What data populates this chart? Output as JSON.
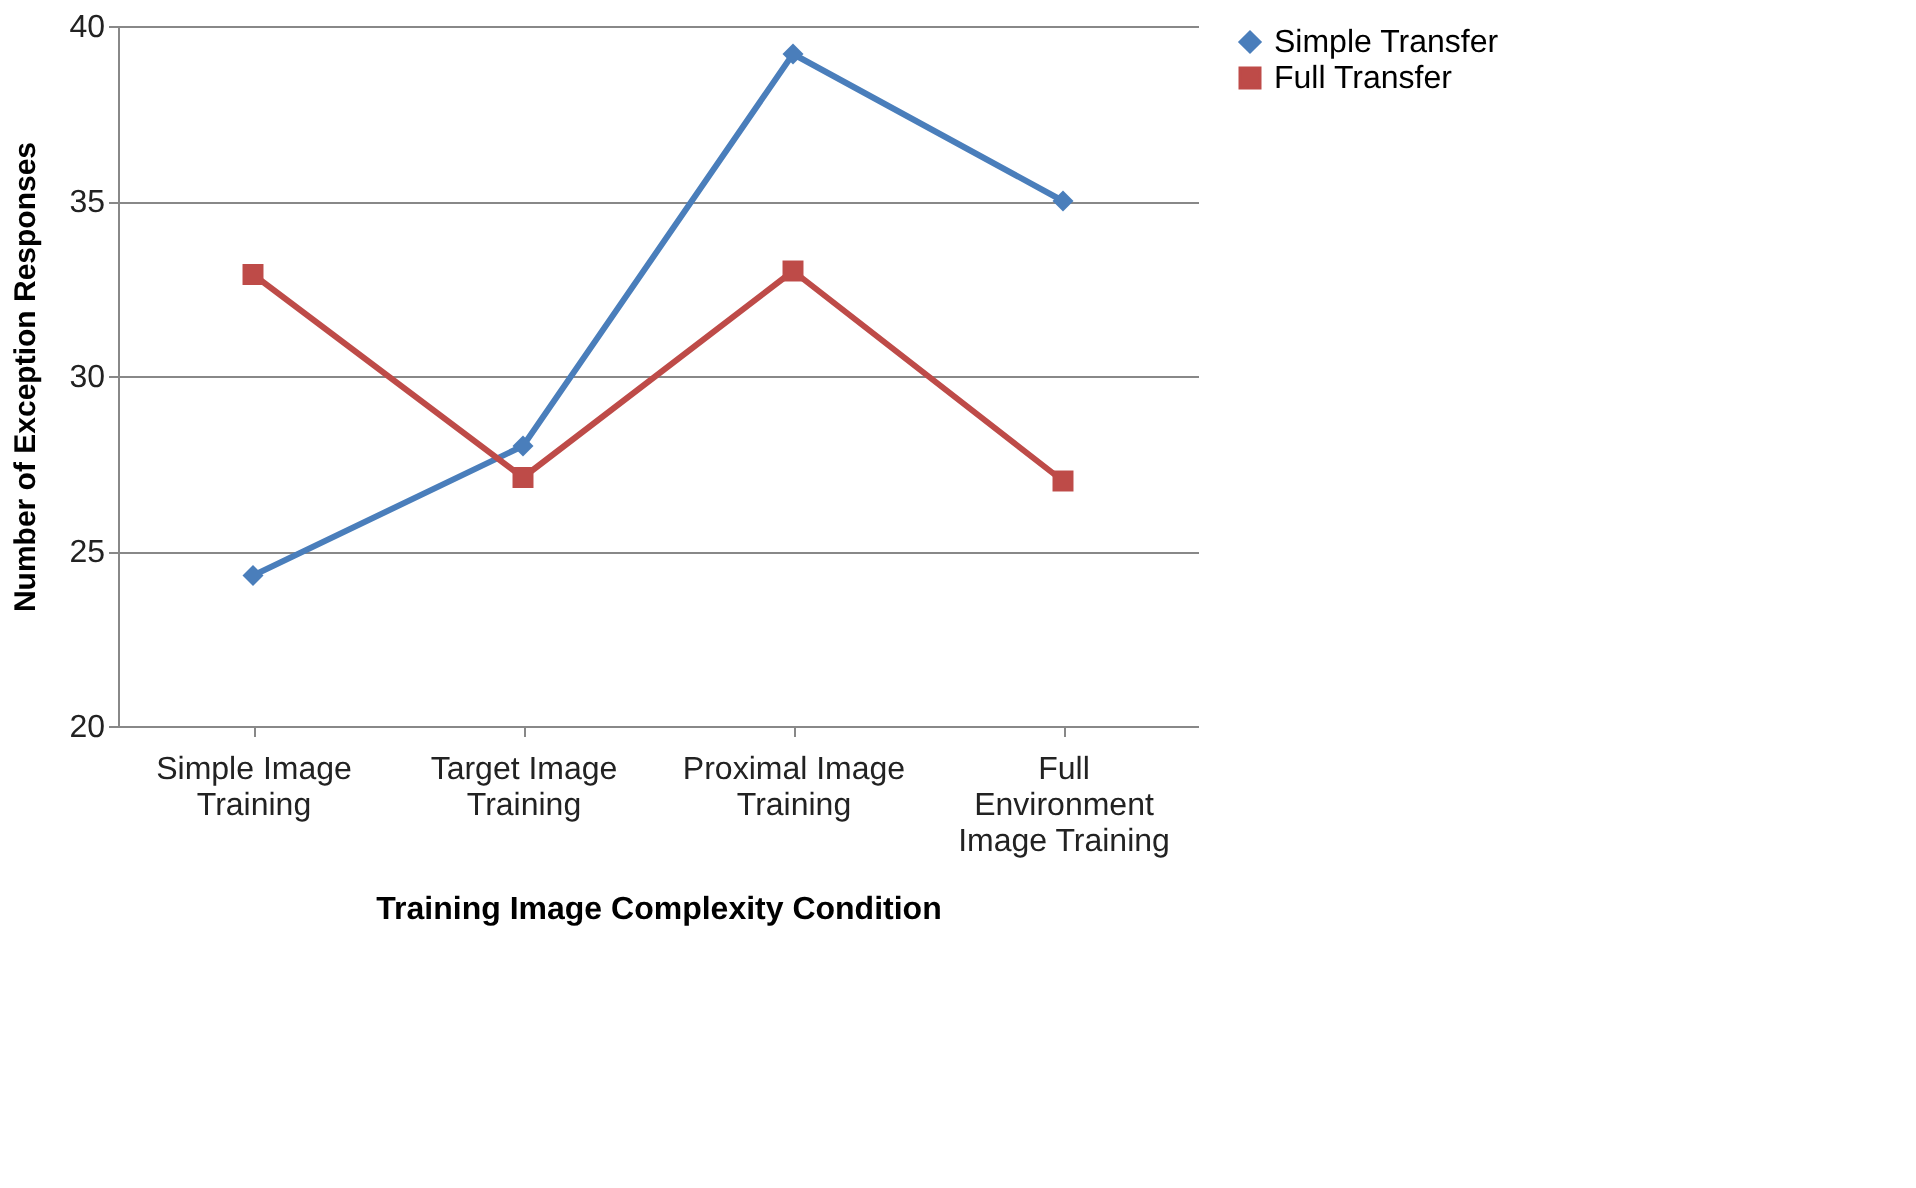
{
  "chart_data": {
    "type": "line",
    "xlabel": "Training Image Complexity Condition",
    "ylabel": "Number of Exception Responses",
    "categories": [
      "Simple Image Training",
      "Target Image Training",
      "Proximal Image Training",
      "Full Environment Image Training"
    ],
    "series": [
      {
        "name": "Simple Transfer",
        "color": "#4a7ebb",
        "marker": "diamond",
        "values": [
          24.3,
          28.0,
          39.2,
          35.0
        ]
      },
      {
        "name": "Full Transfer",
        "color": "#be4b48",
        "marker": "square",
        "values": [
          32.9,
          27.1,
          33.0,
          27.0
        ]
      }
    ],
    "ylim": [
      20,
      40
    ],
    "yticks": [
      20,
      25,
      30,
      35,
      40
    ],
    "grid": "y",
    "legend": "top right",
    "line_style": "solid"
  }
}
